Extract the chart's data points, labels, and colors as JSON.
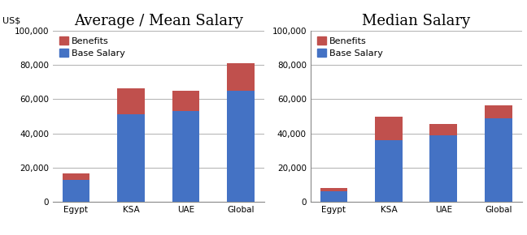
{
  "avg_categories": [
    "Egypt",
    "KSA",
    "UAE",
    "Global"
  ],
  "avg_base": [
    13000,
    51000,
    53000,
    65000
  ],
  "avg_benefits": [
    3500,
    15500,
    12000,
    16000
  ],
  "med_categories": [
    "Egypt",
    "KSA",
    "UAE",
    "Global"
  ],
  "med_base": [
    6500,
    36000,
    39000,
    49000
  ],
  "med_benefits": [
    1500,
    14000,
    6500,
    7500
  ],
  "base_color": "#4472C4",
  "benefits_color": "#C0504D",
  "avg_title": "Average / Mean Salary",
  "med_title": "Median Salary",
  "usd_label": "US$",
  "ylim": [
    0,
    100000
  ],
  "yticks": [
    0,
    20000,
    40000,
    60000,
    80000,
    100000
  ],
  "ytick_labels": [
    "0",
    "20,000",
    "40,000",
    "60,000",
    "80,000",
    "100,000"
  ],
  "title_fontsize": 13,
  "legend_fontsize": 8,
  "tick_fontsize": 7.5,
  "usd_fontsize": 8,
  "bar_width": 0.5,
  "background_color": "#ffffff",
  "grid_color": "#b0b0b0"
}
